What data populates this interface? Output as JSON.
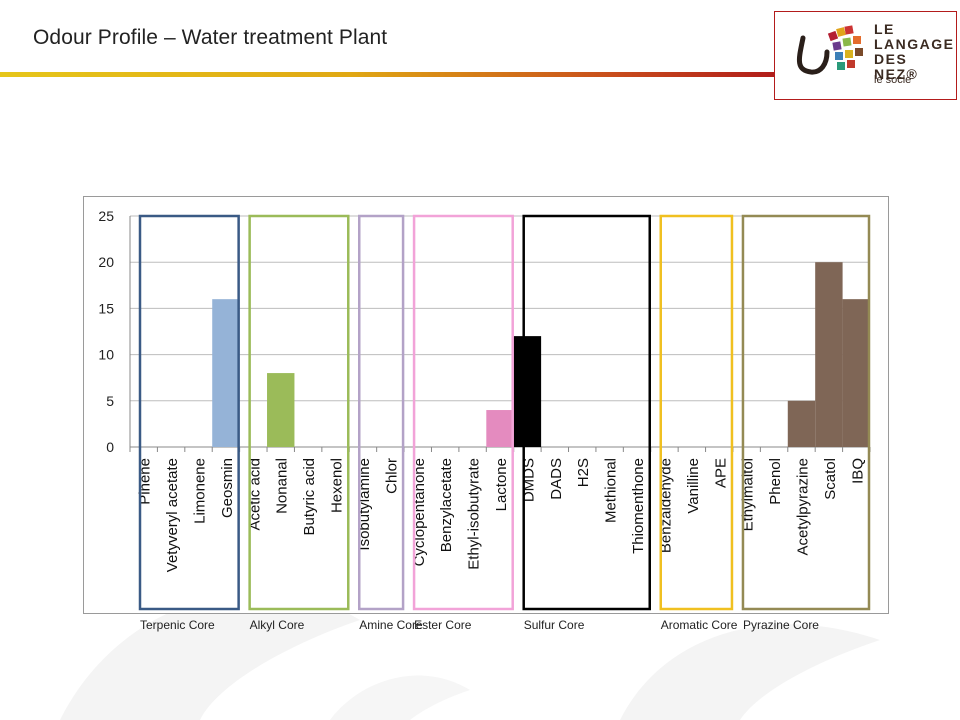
{
  "slide": {
    "title": "Odour Profile – Water treatment Plant"
  },
  "logo": {
    "line1": "LE",
    "line2": "LANGAGE",
    "line3": "DES NEZ®",
    "sub": "le socle"
  },
  "chart_data": {
    "type": "bar",
    "ylim": [
      0,
      25
    ],
    "yticks": [
      0,
      5,
      10,
      15,
      20,
      25
    ],
    "grid": true,
    "categories": [
      "Pinene",
      "Vetyveryl acetate",
      "Limonene",
      "Geosmin",
      "Acetic acid",
      "Nonanal",
      "Butyric acid",
      "Hexenol",
      "Isobutylamine",
      "Chlor",
      "Cyclopentanone",
      "Benzylacetate",
      "Ethyl-isobutyrate",
      "Lactone",
      "DMDS",
      "DADS",
      "H2S",
      "Methional",
      "Thiomenthone",
      "Benzaldehyde",
      "Vanilline",
      "APE",
      "Ethylmaltol",
      "Phenol",
      "Acetylpyrazine",
      "Scatol",
      "IBQ"
    ],
    "values": [
      0,
      0,
      0,
      16,
      0,
      8,
      0,
      0,
      0,
      0,
      0,
      0,
      0,
      4,
      12,
      0,
      0,
      0,
      0,
      0,
      0,
      0,
      0,
      0,
      5,
      20,
      16
    ],
    "groups": [
      {
        "name": "Terpenic Core",
        "start": 0,
        "count": 4,
        "color": "#3a5a85",
        "bar_color": "#95b3d7"
      },
      {
        "name": "Alkyl Core",
        "start": 4,
        "count": 4,
        "color": "#9bbb59",
        "bar_color": "#9bbb59"
      },
      {
        "name": "Amine Core",
        "start": 8,
        "count": 2,
        "color": "#b3a2c7",
        "bar_color": "#b3a2c7"
      },
      {
        "name": "Ester Core",
        "start": 10,
        "count": 4,
        "color": "#f2a3d8",
        "bar_color": "#e48bbf"
      },
      {
        "name": "Sulfur Core",
        "start": 14,
        "count": 5,
        "color": "#000000",
        "bar_color": "#000000"
      },
      {
        "name": "Aromatic Core",
        "start": 19,
        "count": 3,
        "color": "#f0c020",
        "bar_color": "#f0c020"
      },
      {
        "name": "Pyrazine Core",
        "start": 22,
        "count": 5,
        "color": "#948a54",
        "bar_color": "#7f6656"
      }
    ]
  }
}
